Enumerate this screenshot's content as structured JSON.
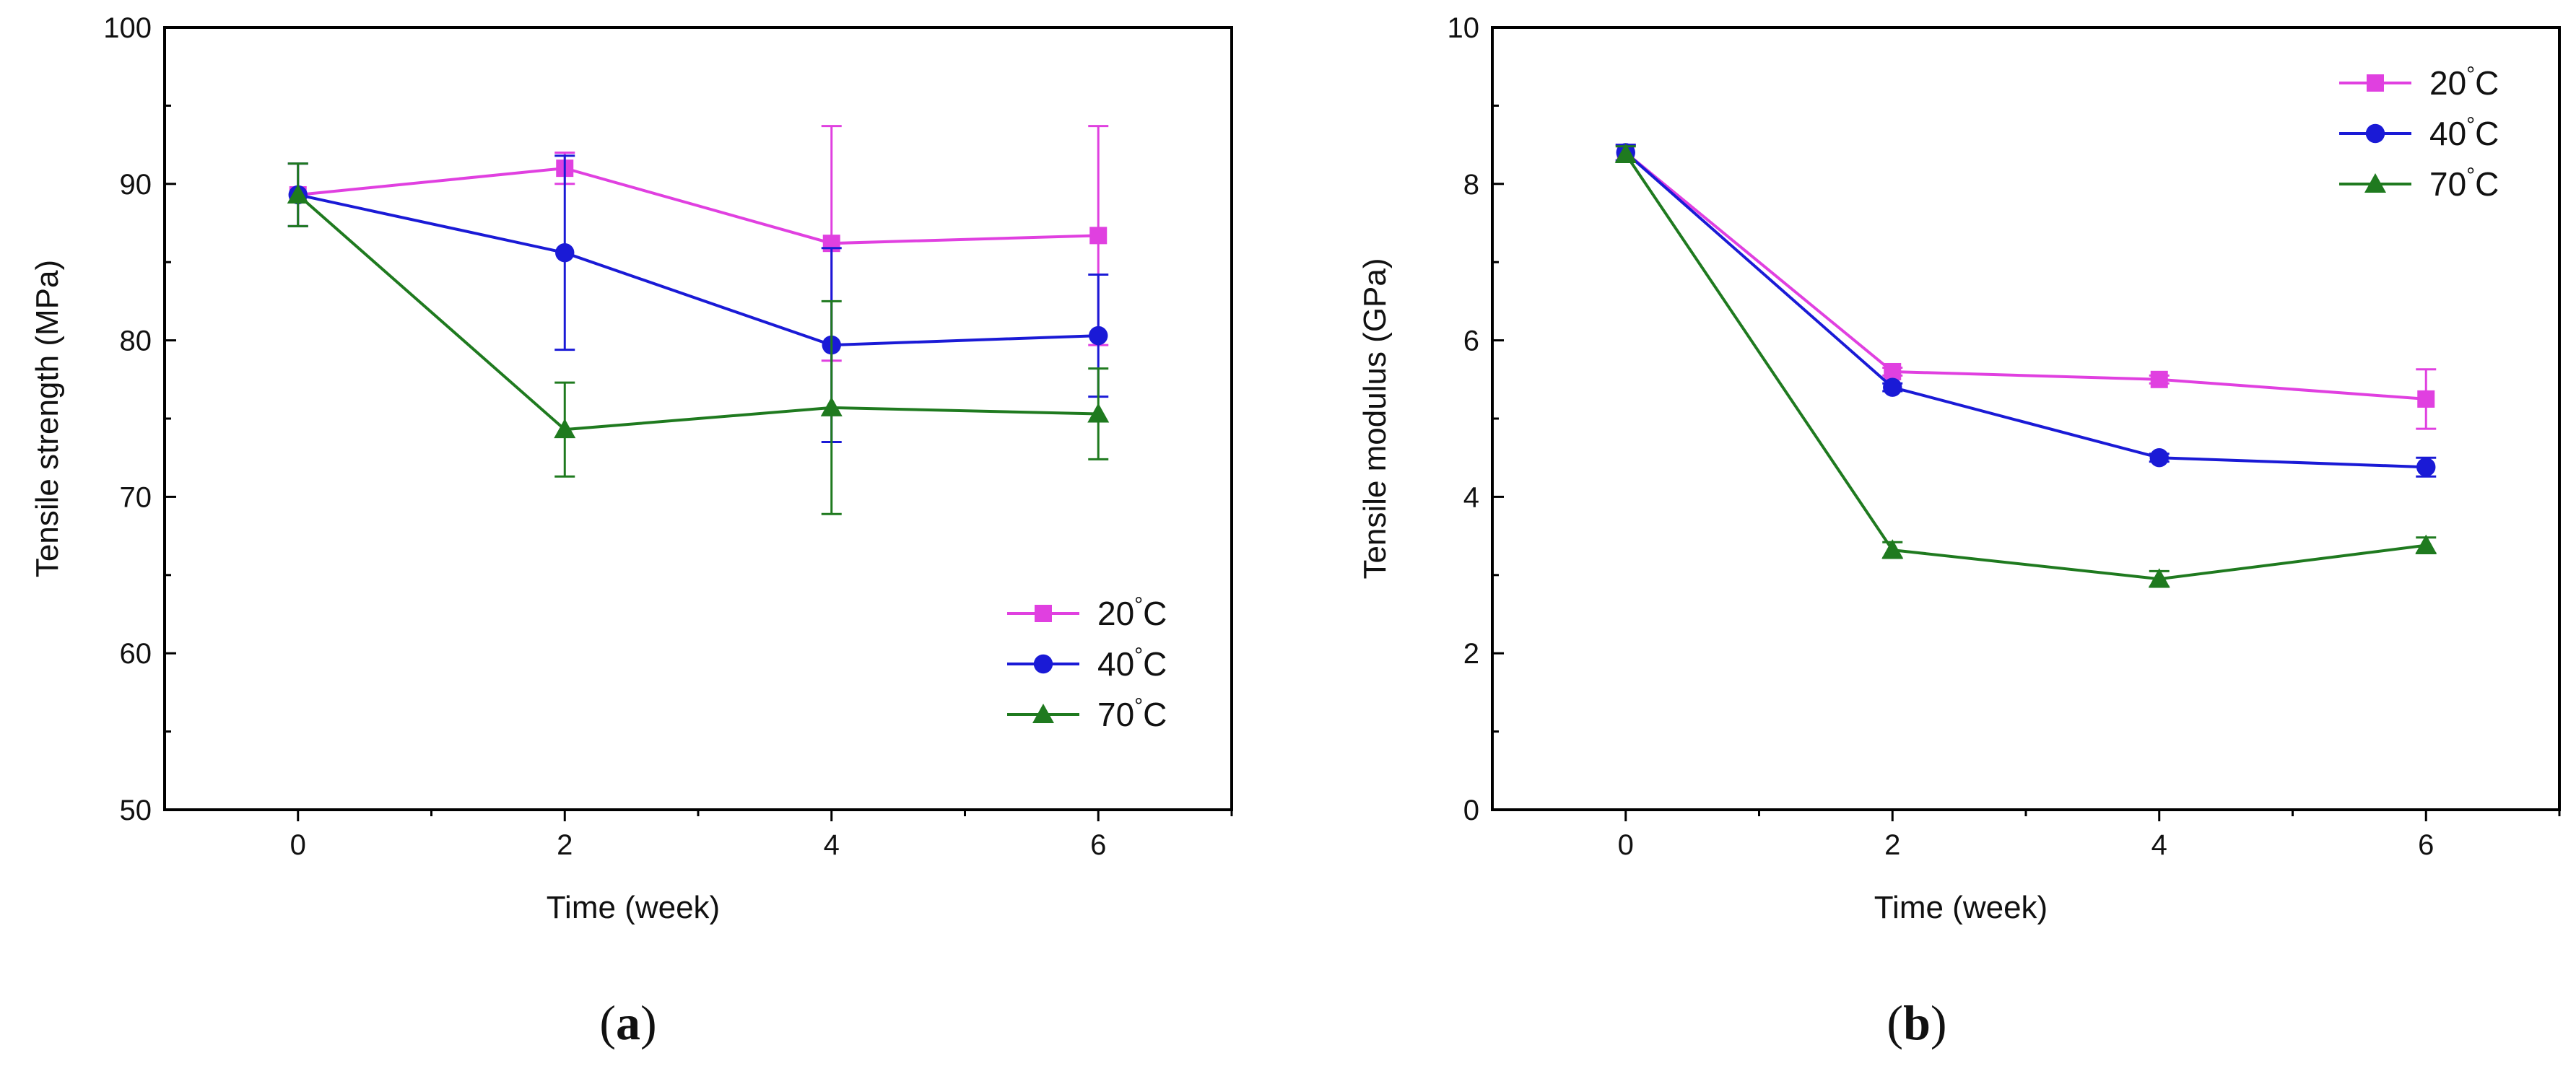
{
  "chart_data": [
    {
      "id": "a",
      "type": "line",
      "panel_label": {
        "open": "(",
        "letter": "a",
        "close": ")"
      },
      "xlabel": "Time (week)",
      "ylabel": "Tensile strength (MPa)",
      "xlim": [
        -1,
        7
      ],
      "ylim": [
        50,
        100
      ],
      "xticks": [
        0,
        2,
        4,
        6
      ],
      "xtick_labels": [
        "0",
        "2",
        "4",
        "6"
      ],
      "yticks": [
        50,
        60,
        70,
        80,
        90,
        100
      ],
      "ytick_labels": [
        "50",
        "60",
        "70",
        "80",
        "90",
        "100"
      ],
      "legend_position": "bottom-right",
      "x": [
        0,
        2,
        4,
        6
      ],
      "series": [
        {
          "name": "20",
          "unit": "°C",
          "color": "#E040E0",
          "marker": "square",
          "values": [
            89.3,
            91.0,
            86.2,
            86.7
          ],
          "errors": [
            2.0,
            1.0,
            7.5,
            7.0
          ]
        },
        {
          "name": "40",
          "unit": "°C",
          "color": "#1A1AD6",
          "marker": "circle",
          "values": [
            89.3,
            85.6,
            79.7,
            80.3
          ],
          "errors": [
            2.0,
            6.2,
            6.2,
            3.9
          ]
        },
        {
          "name": "70",
          "unit": "°C",
          "color": "#1F7A1F",
          "marker": "triangle",
          "values": [
            89.3,
            74.3,
            75.7,
            75.3
          ],
          "errors": [
            2.0,
            3.0,
            6.8,
            2.9
          ]
        }
      ]
    },
    {
      "id": "b",
      "type": "line",
      "panel_label": {
        "open": "(",
        "letter": "b",
        "close": ")"
      },
      "xlabel": "Time (week)",
      "ylabel": "Tensile modulus (GPa)",
      "xlim": [
        -1,
        7
      ],
      "ylim": [
        0,
        10
      ],
      "xticks": [
        0,
        2,
        4,
        6
      ],
      "xtick_labels": [
        "0",
        "2",
        "4",
        "6"
      ],
      "yticks": [
        0,
        2,
        4,
        6,
        8,
        10
      ],
      "ytick_labels": [
        "0",
        "2",
        "4",
        "6",
        "8",
        "10"
      ],
      "legend_position": "top-right",
      "x": [
        0,
        2,
        4,
        6
      ],
      "series": [
        {
          "name": "20",
          "unit": "°C",
          "color": "#E040E0",
          "marker": "square",
          "values": [
            8.4,
            5.6,
            5.5,
            5.25
          ],
          "errors": [
            0.1,
            0.05,
            0.05,
            0.38
          ]
        },
        {
          "name": "40",
          "unit": "°C",
          "color": "#1A1AD6",
          "marker": "circle",
          "values": [
            8.4,
            5.4,
            4.5,
            4.38
          ],
          "errors": [
            0.1,
            0.05,
            0.05,
            0.12
          ]
        },
        {
          "name": "70",
          "unit": "°C",
          "color": "#1F7A1F",
          "marker": "triangle",
          "values": [
            8.38,
            3.32,
            2.95,
            3.38
          ],
          "errors": [
            0.1,
            0.1,
            0.1,
            0.1
          ]
        }
      ]
    }
  ]
}
